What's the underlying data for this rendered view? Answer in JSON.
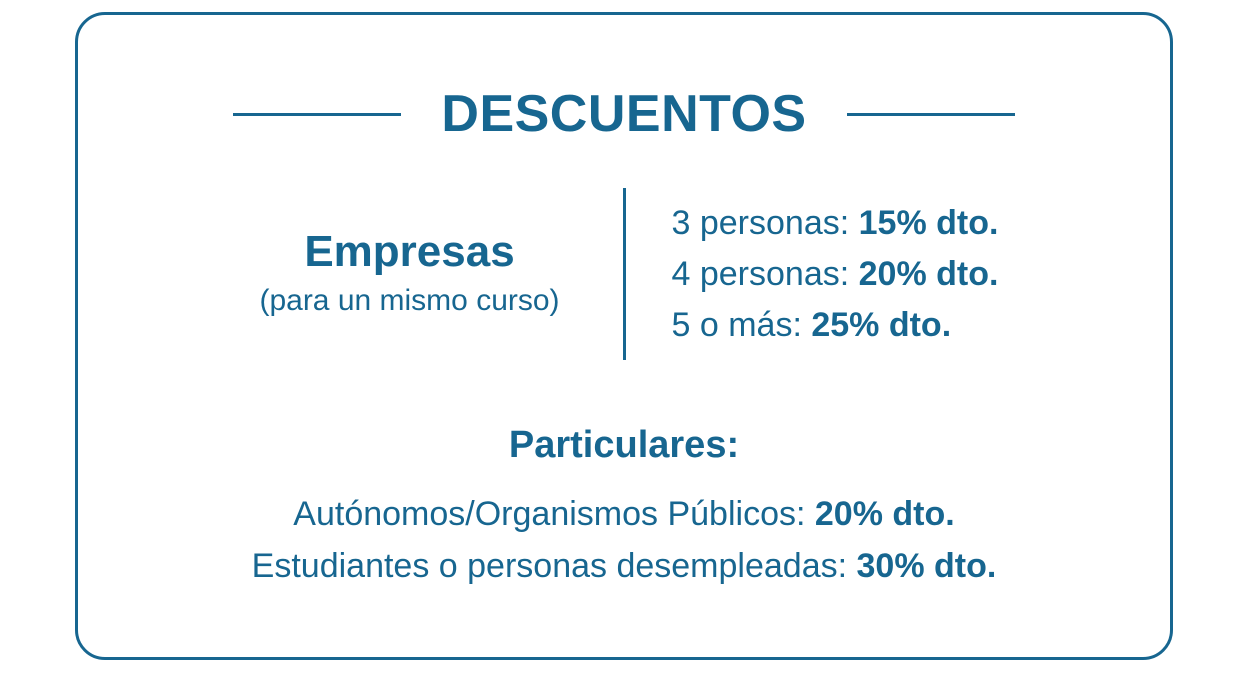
{
  "colors": {
    "accent": "#176690"
  },
  "title": "DESCUENTOS",
  "empresas": {
    "heading": "Empresas",
    "subheading": "(para un mismo curso)",
    "items": [
      {
        "label": "3 personas: ",
        "value": "15% dto."
      },
      {
        "label": "4 personas: ",
        "value": "20% dto."
      },
      {
        "label": "5 o más: ",
        "value": "25% dto."
      }
    ]
  },
  "particulares": {
    "heading": "Particulares:",
    "items": [
      {
        "label": "Autónomos/Organismos Públicos: ",
        "value": "20% dto."
      },
      {
        "label": "Estudiantes o personas desempleadas: ",
        "value": "30% dto."
      }
    ]
  }
}
